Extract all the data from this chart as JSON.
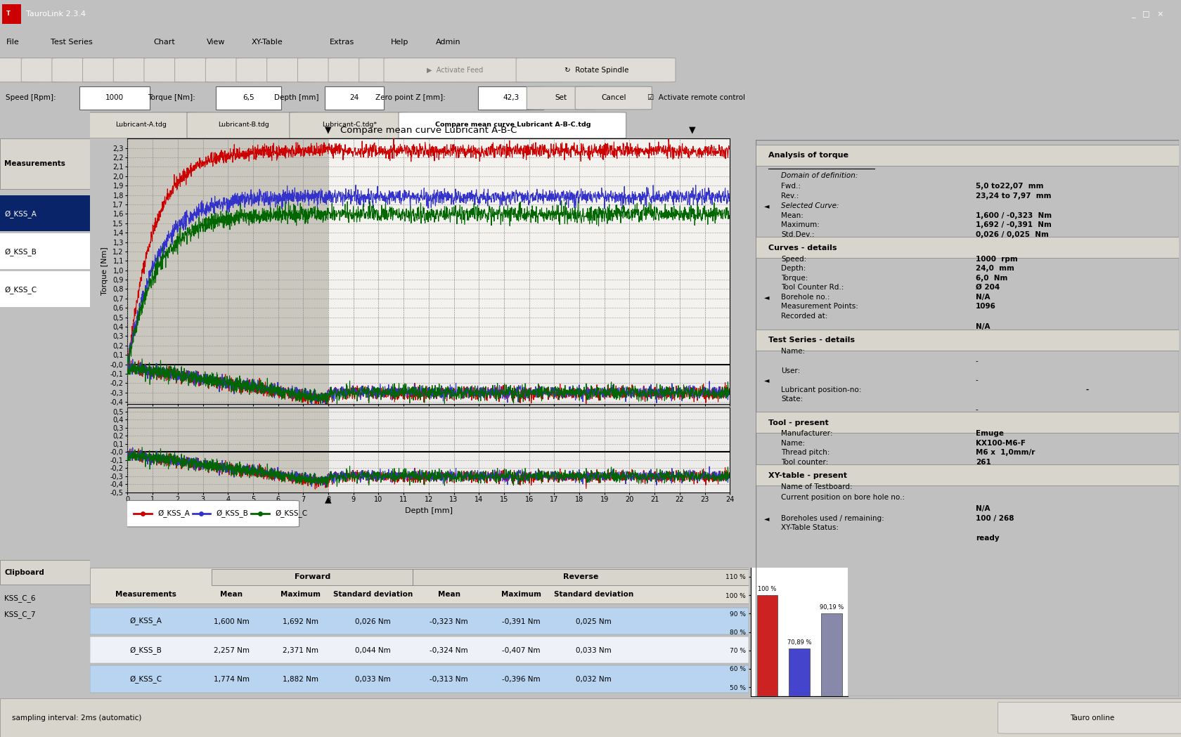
{
  "title": "Compare mean curve Lubricant A-B-C",
  "app_title": "TauroLink 2.3.4",
  "xlabel": "Depth [mm]",
  "ylabel": "Torque [Nm]",
  "tabs": [
    "Lubricant-A.tdg",
    "Lubricant-B.tdg",
    "Lubricant-C.tdg*",
    "Compare mean curve Lubricant A-B-C.tdg"
  ],
  "measurements_list": [
    "Ø_KSS_A",
    "Ø_KSS_B",
    "Ø_KSS_C"
  ],
  "line_colors": {
    "KSS_A": "#cc0000",
    "KSS_B": "#3333cc",
    "KSS_C": "#006600"
  },
  "table_data": [
    [
      "Ø_KSS_A",
      "1,600 Nm",
      "1,692 Nm",
      "0,026 Nm",
      "-0,323 Nm",
      "-0,391 Nm",
      "0,025 Nm"
    ],
    [
      "Ø_KSS_B",
      "2,257 Nm",
      "2,371 Nm",
      "0,044 Nm",
      "-0,324 Nm",
      "-0,407 Nm",
      "0,033 Nm"
    ],
    [
      "Ø_KSS_C",
      "1,774 Nm",
      "1,882 Nm",
      "0,033 Nm",
      "-0,313 Nm",
      "-0,396 Nm",
      "0,032 Nm"
    ]
  ],
  "efficiency_bars": [
    100.0,
    70.89,
    90.19
  ],
  "efficiency_colors": [
    "#cc2222",
    "#4444cc",
    "#8888aa"
  ],
  "efficiency_labels": [
    "100 %",
    "70,89 %",
    "90,19 %"
  ],
  "right_panel": {
    "domain_fwd": "5,0 to22,07  mm",
    "domain_rev": "23,24 to 7,97  mm",
    "mean": "1,600 / -0,323  Nm",
    "maximum": "1,692 / -0,391  Nm",
    "std_dev": "0,026 / 0,025  Nm",
    "speed": "1000  rpm",
    "depth": "24,0  mm",
    "torque": "6,0  Nm",
    "tool_counter_rd": "Ø 204",
    "borehole": "N/A",
    "meas_points": "1096",
    "recorded": "N/A",
    "manufacturer": "Emuge",
    "tool_name": "KX100-M6-F",
    "thread_pitch": "M6 x  1,0mm/r",
    "tool_counter_val": "261",
    "xy_bore_pos": "N/A",
    "boreholes_used": "100 / 268",
    "xy_status": "ready"
  }
}
